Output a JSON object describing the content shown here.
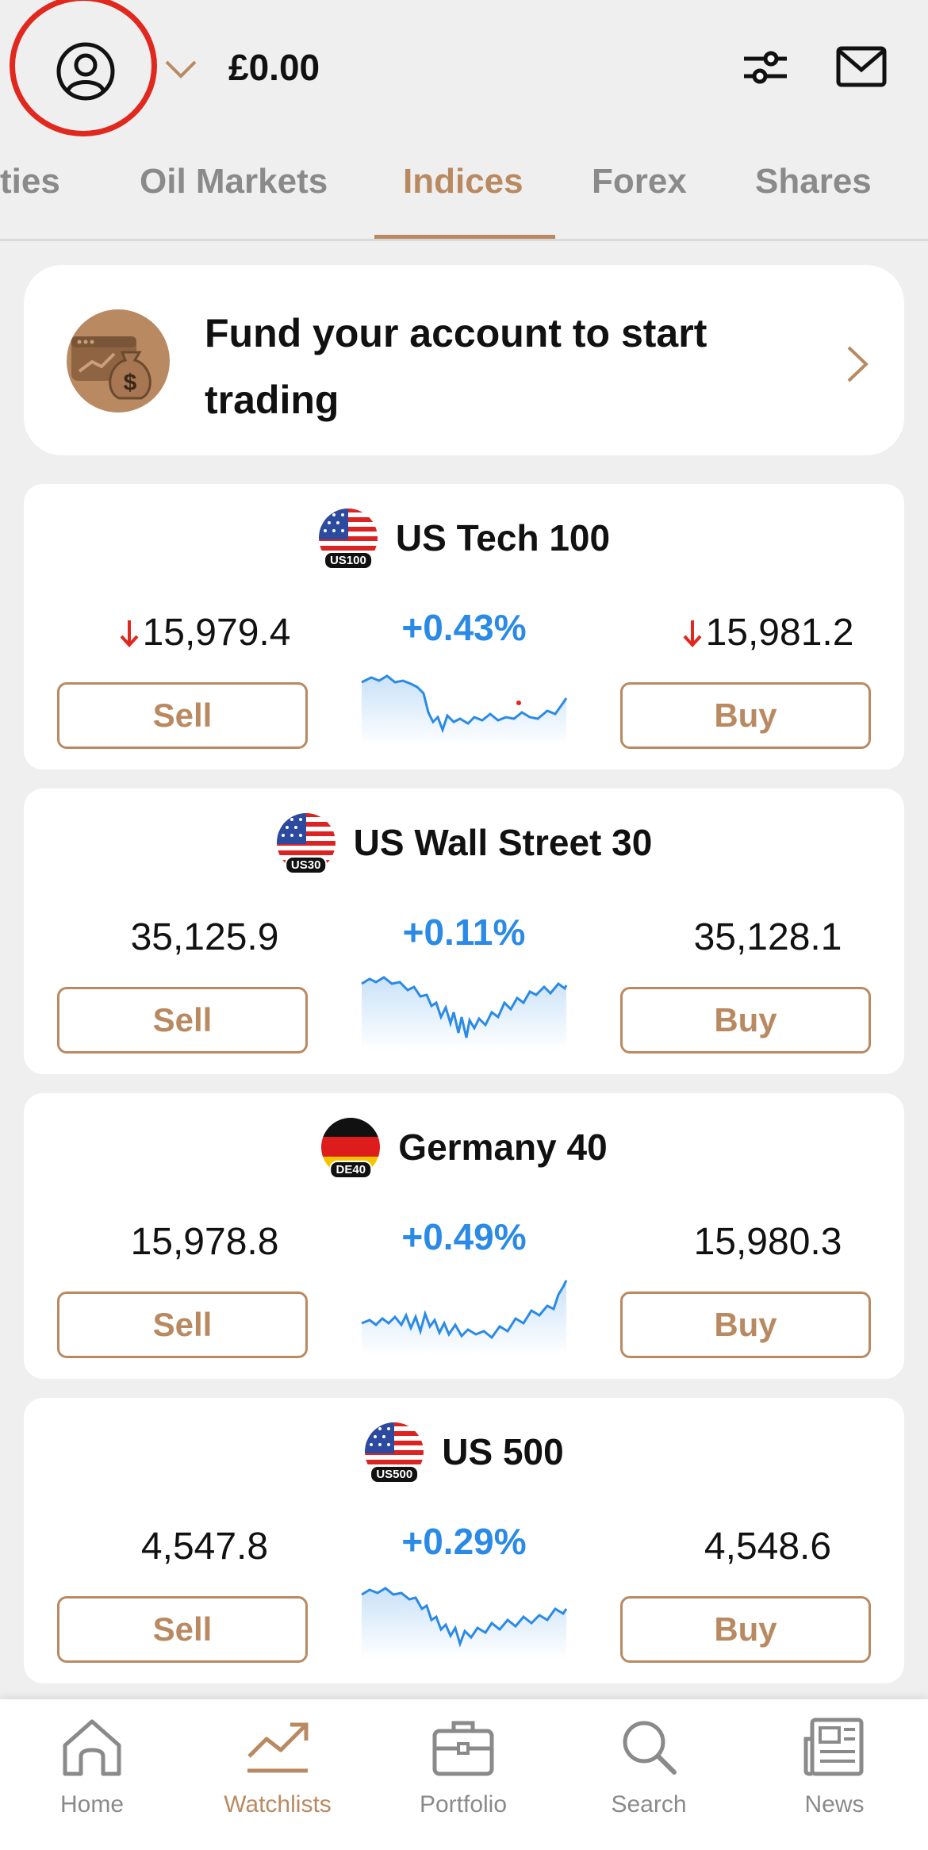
{
  "header": {
    "balance": "£0.00",
    "icons": [
      "user-icon",
      "chevron-down-icon",
      "filter-sliders-icon",
      "mail-icon"
    ],
    "highlight_color": "#e0281e"
  },
  "tabs": [
    {
      "label": "ties"
    },
    {
      "label": "Oil Markets"
    },
    {
      "label": "Indices",
      "active": true
    },
    {
      "label": "Forex"
    },
    {
      "label": "Shares"
    }
  ],
  "promo": {
    "text": "Fund your account to start trading",
    "icon": "money-bag-icon"
  },
  "instruments": [
    {
      "name": "US Tech 100",
      "code": "US100",
      "flag": "us",
      "sell_price": "15,979.4",
      "buy_price": "15,981.2",
      "change": "+0.43%",
      "sell_down": true,
      "buy_down": true,
      "sell_label": "Sell",
      "buy_label": "Buy"
    },
    {
      "name": "US Wall Street 30",
      "code": "US30",
      "flag": "us",
      "sell_price": "35,125.9",
      "buy_price": "35,128.1",
      "change": "+0.11%",
      "sell_down": false,
      "buy_down": false,
      "sell_label": "Sell",
      "buy_label": "Buy"
    },
    {
      "name": "Germany 40",
      "code": "DE40",
      "flag": "de",
      "sell_price": "15,978.8",
      "buy_price": "15,980.3",
      "change": "+0.49%",
      "sell_down": false,
      "buy_down": false,
      "sell_label": "Sell",
      "buy_label": "Buy"
    },
    {
      "name": "US 500",
      "code": "US500",
      "flag": "us",
      "sell_price": "4,547.8",
      "buy_price": "4,548.6",
      "change": "+0.29%",
      "sell_down": false,
      "buy_down": false,
      "sell_label": "Sell",
      "buy_label": "Buy"
    }
  ],
  "bottom_nav": [
    {
      "label": "Home",
      "icon": "home-icon"
    },
    {
      "label": "Watchlists",
      "icon": "trend-icon",
      "active": true
    },
    {
      "label": "Portfolio",
      "icon": "briefcase-icon"
    },
    {
      "label": "Search",
      "icon": "search-icon"
    },
    {
      "label": "News",
      "icon": "newspaper-icon"
    }
  ],
  "colors": {
    "accent": "#b98a62",
    "positive": "#2a8ae6",
    "negative": "#e0281e",
    "background": "#efefef"
  }
}
